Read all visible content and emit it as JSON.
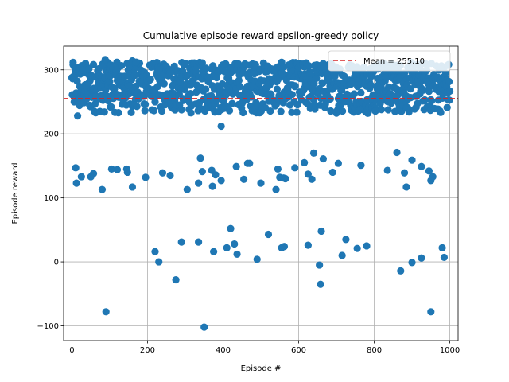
{
  "chart_data": {
    "type": "scatter",
    "title": "Cumulative episode reward epsilon-greedy policy",
    "xlabel": "Episode #",
    "ylabel": "Episode reward",
    "xlim": [
      -22,
      1022
    ],
    "ylim": [
      -123,
      337
    ],
    "xticks": [
      0,
      200,
      400,
      600,
      800,
      1000
    ],
    "yticks": [
      -100,
      0,
      100,
      200,
      300
    ],
    "grid": true,
    "legend_position": "top-right",
    "point_color": "#1f77b4",
    "mean_line": {
      "label": "Mean = 255.10",
      "value": 255.1,
      "color": "#d62728",
      "style": "dashed"
    },
    "series": [
      {
        "dense_band": {
          "x_range": [
            0,
            1000
          ],
          "y_range": [
            222,
            316
          ]
        },
        "outliers": [
          [
            3,
            308
          ],
          [
            88,
            316
          ],
          [
            160,
            314
          ],
          [
            170,
            312
          ],
          [
            395,
            212
          ],
          [
            15,
            228
          ],
          [
            230,
            300
          ],
          [
            10,
            147
          ],
          [
            12,
            123
          ],
          [
            25,
            133
          ],
          [
            50,
            133
          ],
          [
            57,
            138
          ],
          [
            80,
            113
          ],
          [
            105,
            145
          ],
          [
            120,
            144
          ],
          [
            145,
            145
          ],
          [
            147,
            140
          ],
          [
            160,
            117
          ],
          [
            195,
            132
          ],
          [
            240,
            139
          ],
          [
            260,
            135
          ],
          [
            305,
            113
          ],
          [
            335,
            123
          ],
          [
            340,
            162
          ],
          [
            345,
            141
          ],
          [
            370,
            143
          ],
          [
            372,
            118
          ],
          [
            380,
            136
          ],
          [
            395,
            127
          ],
          [
            435,
            149
          ],
          [
            455,
            129
          ],
          [
            465,
            154
          ],
          [
            470,
            154
          ],
          [
            500,
            123
          ],
          [
            540,
            113
          ],
          [
            545,
            145
          ],
          [
            550,
            132
          ],
          [
            560,
            131
          ],
          [
            565,
            130
          ],
          [
            590,
            147
          ],
          [
            615,
            155
          ],
          [
            625,
            137
          ],
          [
            635,
            129
          ],
          [
            640,
            170
          ],
          [
            665,
            161
          ],
          [
            690,
            140
          ],
          [
            705,
            154
          ],
          [
            765,
            151
          ],
          [
            835,
            143
          ],
          [
            860,
            171
          ],
          [
            880,
            139
          ],
          [
            885,
            117
          ],
          [
            900,
            159
          ],
          [
            925,
            149
          ],
          [
            945,
            142
          ],
          [
            950,
            127
          ],
          [
            955,
            133
          ],
          [
            220,
            16
          ],
          [
            230,
            0
          ],
          [
            275,
            -28
          ],
          [
            290,
            31
          ],
          [
            335,
            31
          ],
          [
            375,
            16
          ],
          [
            410,
            22
          ],
          [
            420,
            52
          ],
          [
            430,
            28
          ],
          [
            437,
            12
          ],
          [
            490,
            4
          ],
          [
            520,
            43
          ],
          [
            555,
            22
          ],
          [
            562,
            24
          ],
          [
            625,
            26
          ],
          [
            655,
            -5
          ],
          [
            660,
            48
          ],
          [
            658,
            -35
          ],
          [
            715,
            10
          ],
          [
            725,
            35
          ],
          [
            755,
            21
          ],
          [
            780,
            25
          ],
          [
            870,
            -14
          ],
          [
            900,
            -1
          ],
          [
            925,
            6
          ],
          [
            980,
            22
          ],
          [
            985,
            7
          ],
          [
            90,
            -78
          ],
          [
            350,
            -102
          ],
          [
            950,
            -78
          ]
        ]
      }
    ]
  }
}
